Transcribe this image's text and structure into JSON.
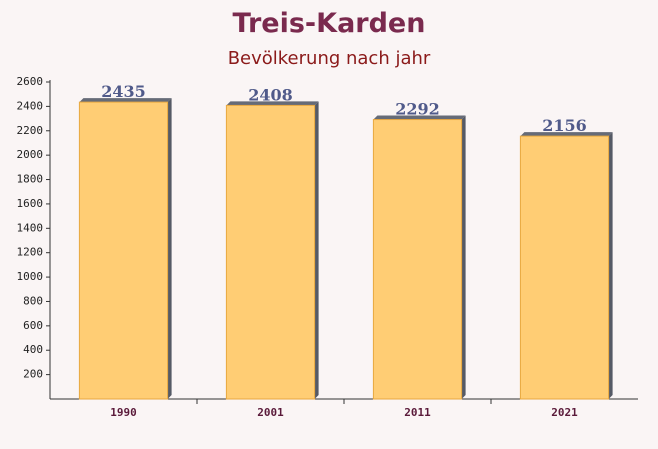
{
  "chart_data": {
    "type": "bar",
    "title": "Treis-Karden",
    "subtitle": "Bevölkerung nach jahr",
    "categories": [
      "1990",
      "2001",
      "2011",
      "2021"
    ],
    "values": [
      2435,
      2408,
      2292,
      2156
    ],
    "color": "#ffc966",
    "ylim": [
      0,
      2600
    ],
    "yticks": [
      200,
      400,
      600,
      800,
      1000,
      1200,
      1400,
      1600,
      1800,
      2000,
      2200,
      2400,
      2600
    ]
  }
}
